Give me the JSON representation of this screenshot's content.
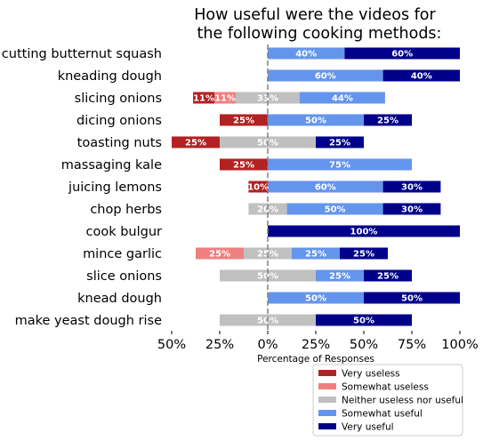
{
  "chart_data": {
    "type": "bar",
    "orientation": "horizontal-diverging-stacked",
    "title_lines": [
      "How useful were the videos for",
      "the following cooking methods:"
    ],
    "xlabel": "Percentage of Responses",
    "xlim": [
      -50,
      100
    ],
    "xticks": [
      -50,
      -25,
      0,
      25,
      50,
      75,
      100
    ],
    "xtick_labels": [
      "50%",
      "25%",
      "0%",
      "25%",
      "50%",
      "75%",
      "100%"
    ],
    "center_line": "dashed at 0",
    "legend_position": "bottom-right",
    "categories": [
      "cutting butternut squash",
      "kneading dough",
      "slicing onions",
      "dicing onions",
      "toasting nuts",
      "massaging kale",
      "juicing lemons",
      "chop herbs",
      "cook bulgur",
      "mince garlic",
      "slice onions",
      "knead dough",
      "make yeast dough rise"
    ],
    "series": [
      {
        "name": "Very useless",
        "color": "#b22222",
        "values": [
          0,
          0,
          11.1,
          25,
          25,
          25,
          10,
          0,
          0,
          0,
          0,
          0,
          0
        ]
      },
      {
        "name": "Somewhat useless",
        "color": "#f08080",
        "values": [
          0,
          0,
          11.1,
          0,
          0,
          0,
          0,
          0,
          0,
          25,
          0,
          0,
          0
        ]
      },
      {
        "name": "Neither useless nor useful",
        "color": "#c0c0c0",
        "values": [
          0,
          0,
          33.3,
          0,
          50,
          0,
          0,
          20,
          0,
          25,
          50,
          0,
          50
        ]
      },
      {
        "name": "Somewhat useful",
        "color": "#6495ed",
        "values": [
          40,
          60,
          44.4,
          50,
          0,
          75,
          60,
          50,
          0,
          25,
          25,
          50,
          0
        ]
      },
      {
        "name": "Very useful",
        "color": "#00008b",
        "values": [
          60,
          40,
          0,
          25,
          25,
          0,
          30,
          30,
          100,
          25,
          25,
          50,
          50
        ]
      }
    ],
    "bar_labels": [
      [
        null,
        null,
        null,
        "40%",
        "60%"
      ],
      [
        null,
        null,
        null,
        "60%",
        "40%"
      ],
      [
        "11%",
        "11%",
        "33%",
        "44%",
        null
      ],
      [
        "25%",
        null,
        null,
        "50%",
        "25%"
      ],
      [
        "25%",
        null,
        "50%",
        null,
        "25%"
      ],
      [
        "25%",
        null,
        null,
        "75%",
        null
      ],
      [
        "10%",
        null,
        null,
        "60%",
        "30%"
      ],
      [
        null,
        null,
        "20%",
        "50%",
        "30%"
      ],
      [
        null,
        null,
        null,
        null,
        "100%"
      ],
      [
        null,
        "25%",
        "25%",
        "25%",
        "25%"
      ],
      [
        null,
        null,
        "50%",
        "25%",
        "25%"
      ],
      [
        null,
        null,
        null,
        "50%",
        "50%"
      ],
      [
        null,
        null,
        "50%",
        null,
        "50%"
      ]
    ]
  }
}
